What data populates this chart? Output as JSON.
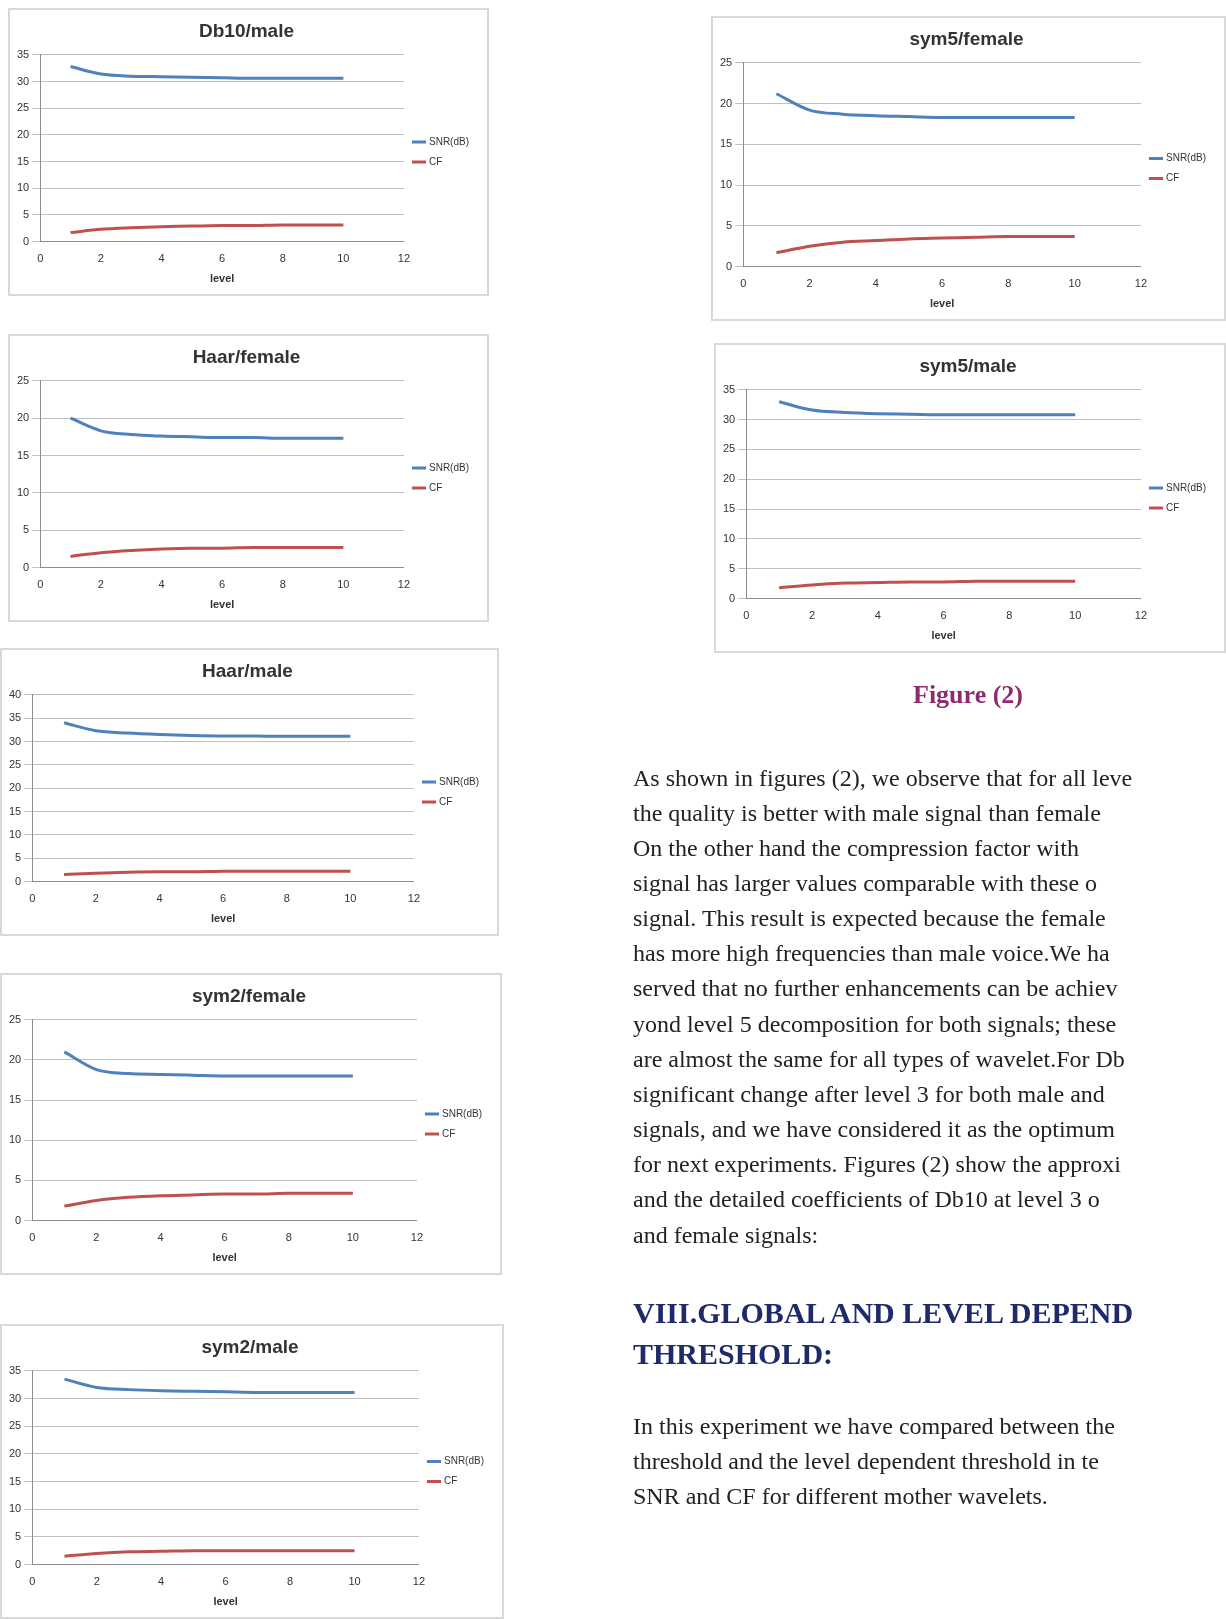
{
  "chart_data": [
    {
      "type": "line",
      "title": "Db10/male",
      "xlabel": "level",
      "x": [
        1,
        2,
        3,
        4,
        5,
        6,
        7,
        8,
        9,
        10
      ],
      "xlim": [
        0,
        12
      ],
      "xticks": [
        0,
        2,
        4,
        6,
        8,
        10,
        12
      ],
      "ylim": [
        0,
        35
      ],
      "yticks": [
        0,
        5,
        10,
        15,
        20,
        25,
        30,
        35
      ],
      "grid": "y",
      "legend": "right",
      "marker": "none",
      "series": [
        {
          "name": "SNR(dB)",
          "color": "#4f81bd",
          "values": [
            32.8,
            31.4,
            31.0,
            30.9,
            30.8,
            30.7,
            30.6,
            30.6,
            30.6,
            30.6
          ]
        },
        {
          "name": "CF",
          "color": "#c0504d",
          "values": [
            1.7,
            2.3,
            2.6,
            2.8,
            2.9,
            3.0,
            3.0,
            3.1,
            3.1,
            3.1
          ]
        }
      ]
    },
    {
      "type": "line",
      "title": "Haar/female",
      "xlabel": "level",
      "x": [
        1,
        2,
        3,
        4,
        5,
        6,
        7,
        8,
        9,
        10
      ],
      "xlim": [
        0,
        12
      ],
      "xticks": [
        0,
        2,
        4,
        6,
        8,
        10,
        12
      ],
      "ylim": [
        0,
        25
      ],
      "yticks": [
        0,
        5,
        10,
        15,
        20,
        25
      ],
      "grid": "y",
      "legend": "right",
      "marker": "none",
      "series": [
        {
          "name": "SNR(dB)",
          "color": "#4f81bd",
          "values": [
            20.0,
            18.3,
            17.8,
            17.6,
            17.5,
            17.4,
            17.4,
            17.3,
            17.3,
            17.3
          ]
        },
        {
          "name": "CF",
          "color": "#c0504d",
          "values": [
            1.5,
            2.0,
            2.3,
            2.5,
            2.6,
            2.6,
            2.7,
            2.7,
            2.7,
            2.7
          ]
        }
      ]
    },
    {
      "type": "line",
      "title": "Haar/male",
      "xlabel": "level",
      "x": [
        1,
        2,
        3,
        4,
        5,
        6,
        7,
        8,
        9,
        10
      ],
      "xlim": [
        0,
        12
      ],
      "xticks": [
        0,
        2,
        4,
        6,
        8,
        10,
        12
      ],
      "ylim": [
        0,
        40
      ],
      "yticks": [
        0,
        5,
        10,
        15,
        20,
        25,
        30,
        35,
        40
      ],
      "grid": "y",
      "legend": "right",
      "marker": "none",
      "series": [
        {
          "name": "SNR(dB)",
          "color": "#4f81bd",
          "values": [
            34.0,
            32.3,
            31.8,
            31.5,
            31.3,
            31.2,
            31.2,
            31.1,
            31.1,
            31.1
          ]
        },
        {
          "name": "CF",
          "color": "#c0504d",
          "values": [
            1.5,
            1.8,
            2.0,
            2.1,
            2.1,
            2.2,
            2.2,
            2.2,
            2.2,
            2.2
          ]
        }
      ]
    },
    {
      "type": "line",
      "title": "sym2/female",
      "xlabel": "level",
      "x": [
        1,
        2,
        3,
        4,
        5,
        6,
        7,
        8,
        9,
        10
      ],
      "xlim": [
        0,
        12
      ],
      "xticks": [
        0,
        2,
        4,
        6,
        8,
        10,
        12
      ],
      "ylim": [
        0,
        25
      ],
      "yticks": [
        0,
        5,
        10,
        15,
        20,
        25
      ],
      "grid": "y",
      "legend": "right",
      "marker": "none",
      "series": [
        {
          "name": "SNR(dB)",
          "color": "#4f81bd",
          "values": [
            21.0,
            18.8,
            18.3,
            18.2,
            18.1,
            18.0,
            18.0,
            18.0,
            18.0,
            18.0
          ]
        },
        {
          "name": "CF",
          "color": "#c0504d",
          "values": [
            1.8,
            2.5,
            2.9,
            3.1,
            3.2,
            3.3,
            3.3,
            3.4,
            3.4,
            3.4
          ]
        }
      ]
    },
    {
      "type": "line",
      "title": "sym2/male",
      "xlabel": "level",
      "x": [
        1,
        2,
        3,
        4,
        5,
        6,
        7,
        8,
        9,
        10
      ],
      "xlim": [
        0,
        12
      ],
      "xticks": [
        0,
        2,
        4,
        6,
        8,
        10,
        12
      ],
      "ylim": [
        0,
        35
      ],
      "yticks": [
        0,
        5,
        10,
        15,
        20,
        25,
        30,
        35
      ],
      "grid": "y",
      "legend": "right",
      "marker": "none",
      "series": [
        {
          "name": "SNR(dB)",
          "color": "#4f81bd",
          "values": [
            33.5,
            32.0,
            31.6,
            31.4,
            31.3,
            31.2,
            31.1,
            31.1,
            31.1,
            31.1
          ]
        },
        {
          "name": "CF",
          "color": "#c0504d",
          "values": [
            1.5,
            2.0,
            2.3,
            2.4,
            2.5,
            2.5,
            2.5,
            2.5,
            2.5,
            2.5
          ]
        }
      ]
    },
    {
      "type": "line",
      "title": "sym5/female",
      "xlabel": "level",
      "x": [
        1,
        2,
        3,
        4,
        5,
        6,
        7,
        8,
        9,
        10
      ],
      "xlim": [
        0,
        12
      ],
      "xticks": [
        0,
        2,
        4,
        6,
        8,
        10,
        12
      ],
      "ylim": [
        0,
        25
      ],
      "yticks": [
        0,
        5,
        10,
        15,
        20,
        25
      ],
      "grid": "y",
      "legend": "right",
      "marker": "none",
      "series": [
        {
          "name": "SNR(dB)",
          "color": "#4f81bd",
          "values": [
            21.2,
            19.2,
            18.7,
            18.5,
            18.4,
            18.3,
            18.3,
            18.3,
            18.3,
            18.3
          ]
        },
        {
          "name": "CF",
          "color": "#c0504d",
          "values": [
            1.7,
            2.5,
            3.0,
            3.2,
            3.4,
            3.5,
            3.6,
            3.7,
            3.7,
            3.7
          ]
        }
      ]
    },
    {
      "type": "line",
      "title": "sym5/male",
      "xlabel": "level",
      "x": [
        1,
        2,
        3,
        4,
        5,
        6,
        7,
        8,
        9,
        10
      ],
      "xlim": [
        0,
        12
      ],
      "xticks": [
        0,
        2,
        4,
        6,
        8,
        10,
        12
      ],
      "ylim": [
        0,
        35
      ],
      "yticks": [
        0,
        5,
        10,
        15,
        20,
        25,
        30,
        35
      ],
      "grid": "y",
      "legend": "right",
      "marker": "none",
      "series": [
        {
          "name": "SNR(dB)",
          "color": "#4f81bd",
          "values": [
            33.0,
            31.6,
            31.2,
            31.0,
            30.9,
            30.8,
            30.8,
            30.8,
            30.8,
            30.8
          ]
        },
        {
          "name": "CF",
          "color": "#c0504d",
          "values": [
            1.8,
            2.3,
            2.6,
            2.7,
            2.8,
            2.8,
            2.9,
            2.9,
            2.9,
            2.9
          ]
        }
      ]
    },
    {
      "type": "other",
      "title": "Figure (2)",
      "annotations": [
        "As shown in figures (2), we observe that for all leve",
        "the quality is better with male signal than female",
        "On the other hand the compression factor with",
        "signal has larger values comparable with these o",
        "signal. This result is expected because the female",
        "has more high frequencies than male voice.We ha",
        "served that no further enhancements can be achiev",
        "yond level 5 decomposition for both signals; these",
        "are almost the same for all types of wavelet.For Db",
        "significant change after level 3 for both male and",
        "signals, and we have considered it as the optimum",
        "for next experiments. Figures (2) show the approxi",
        "and the detailed coefficients of Db10 at level 3 o",
        "and female signals:",
        "VIII.GLOBAL AND LEVEL DEPEND",
        "THRESHOLD:",
        "In this experiment we have compared between the",
        "threshold and the level dependent threshold in te",
        "SNR and CF for different mother wavelets."
      ]
    }
  ]
}
